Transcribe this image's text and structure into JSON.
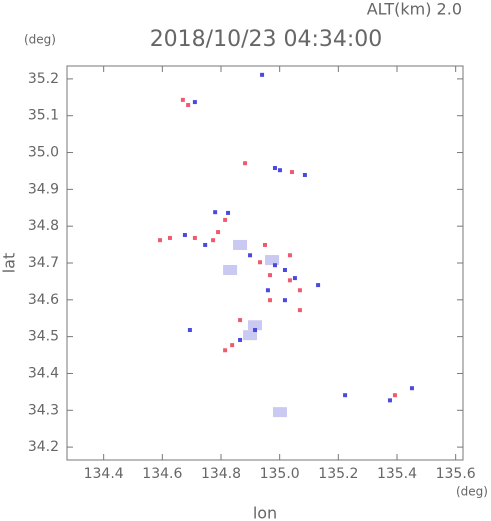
{
  "chart_data": {
    "type": "scatter",
    "title": "2018/10/23 04:34:00",
    "subtitle": "ALT(km) 2.0",
    "x_label": "lon",
    "y_label": "lat",
    "x_unit": "(deg)",
    "y_unit": "(deg)",
    "xlim": [
      134.275,
      135.625
    ],
    "ylim": [
      34.165,
      35.235
    ],
    "xticks": [
      134.4,
      134.6,
      134.8,
      {
        "value": 135,
        "label": "135.0"
      },
      135.2,
      135.4,
      135.6
    ],
    "yticks": [
      34.2,
      34.3,
      34.4,
      34.5,
      34.6,
      34.7,
      34.8,
      34.9,
      {
        "value": 35,
        "label": "35.0"
      },
      35.1,
      35.2
    ],
    "series": [
      {
        "color": "#c9c9f2",
        "x": [
          134.865,
          134.916,
          134.899,
          135.001,
          134.831,
          134.974
        ],
        "values": [
          34.749,
          34.531,
          34.504,
          34.295,
          34.681,
          34.708
        ]
      },
      {
        "color": "#f05a6e",
        "x": [
          134.67,
          134.688,
          134.592,
          134.626,
          134.711,
          134.773,
          134.79,
          134.882,
          135.042,
          134.95,
          134.933,
          134.967,
          135.035,
          135.069,
          134.967,
          134.865,
          134.814,
          134.838,
          135.069,
          135.393,
          135.035,
          134.814
        ],
        "values": [
          35.143,
          35.129,
          34.762,
          34.768,
          34.768,
          34.762,
          34.784,
          34.971,
          34.947,
          34.749,
          34.702,
          34.667,
          34.653,
          34.626,
          34.599,
          34.545,
          34.463,
          34.477,
          34.572,
          34.341,
          34.721,
          34.817
        ]
      },
      {
        "color": "#4a4ae0",
        "x": [
          134.711,
          134.94,
          134.984,
          135.001,
          134.78,
          134.824,
          134.677,
          134.746,
          134.899,
          134.984,
          135.018,
          135.052,
          134.96,
          135.018,
          134.916,
          134.694,
          134.865,
          135.131,
          135.376,
          135.451,
          135.086,
          135.223
        ],
        "values": [
          35.137,
          35.211,
          34.958,
          34.952,
          34.838,
          34.836,
          34.776,
          34.749,
          34.721,
          34.694,
          34.681,
          34.659,
          34.626,
          34.599,
          34.518,
          34.518,
          34.491,
          34.64,
          34.327,
          34.36,
          34.939,
          34.341
        ]
      }
    ]
  }
}
